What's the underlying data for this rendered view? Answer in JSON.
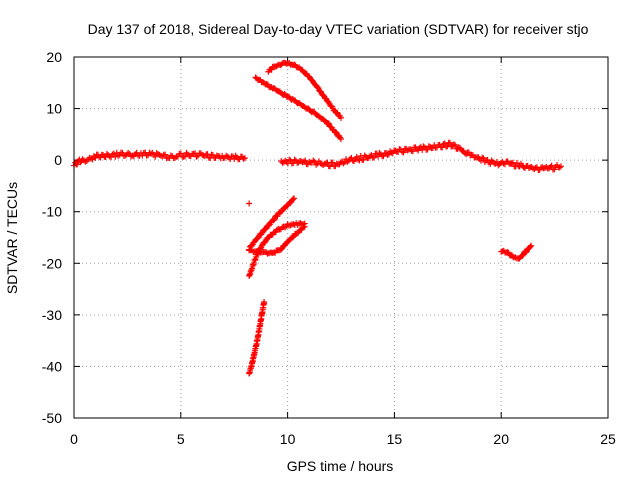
{
  "chart_data": {
    "type": "scatter",
    "title": "Day 137 of 2018, Sidereal Day-to-day VTEC variation (SDTVAR) for receiver stjo",
    "xlabel": "GPS time / hours",
    "ylabel": "SDTVAR / TECUs",
    "xlim": [
      0,
      25
    ],
    "ylim": [
      -50,
      20
    ],
    "x_ticks": [
      "0",
      "5",
      "10",
      "15",
      "20",
      "25"
    ],
    "y_ticks": [
      "20",
      "10",
      "0",
      "-10",
      "-20",
      "-30",
      "-40",
      "-50"
    ],
    "grid": true,
    "legend": "none",
    "marker": "+",
    "color": "#ff0000",
    "series": [
      {
        "x": [
          0.0,
          0.2,
          0.4,
          0.6,
          0.8,
          1.0,
          1.3,
          1.6,
          2.0,
          2.4,
          2.8,
          3.2,
          3.6,
          4.0,
          4.4,
          4.8,
          5.2,
          5.6,
          6.0,
          6.5,
          7.0,
          7.5,
          8.0
        ],
        "y": [
          -0.8,
          -0.4,
          0.0,
          0.2,
          0.4,
          0.6,
          0.8,
          0.9,
          1.1,
          1.2,
          1.0,
          1.1,
          1.2,
          0.9,
          0.6,
          0.8,
          1.0,
          1.1,
          0.9,
          0.8,
          0.7,
          0.5,
          0.4
        ]
      },
      {
        "x": [
          9.7,
          10.2,
          10.7,
          11.2,
          11.8,
          12.3,
          12.8,
          13.3,
          13.8,
          14.3,
          14.8,
          15.3,
          15.8,
          16.3,
          16.8,
          17.3,
          17.6,
          17.9,
          18.3,
          18.8,
          19.3,
          19.8,
          20.3,
          20.8,
          21.3,
          21.8,
          22.3,
          22.8
        ],
        "y": [
          -0.2,
          -0.3,
          -0.4,
          -0.5,
          -0.8,
          -0.8,
          -0.1,
          0.3,
          0.7,
          1.0,
          1.4,
          1.8,
          2.0,
          2.3,
          2.6,
          2.8,
          3.0,
          2.6,
          1.6,
          0.6,
          -0.2,
          -0.6,
          -0.5,
          -1.0,
          -1.4,
          -1.6,
          -1.5,
          -1.2
        ]
      },
      {
        "x": [
          9.1,
          9.3,
          9.6,
          9.9,
          10.2,
          10.6,
          11.0,
          11.4,
          11.8,
          12.2,
          12.5
        ],
        "y": [
          17.2,
          17.9,
          18.5,
          18.8,
          18.6,
          17.7,
          16.2,
          14.1,
          11.8,
          9.6,
          8.2
        ]
      },
      {
        "x": [
          8.5,
          8.9,
          9.3,
          9.8,
          10.3,
          10.8,
          11.3,
          11.8,
          12.2,
          12.5
        ],
        "y": [
          16.0,
          15.0,
          14.0,
          12.8,
          11.6,
          10.3,
          9.0,
          7.5,
          5.6,
          4.1
        ]
      },
      {
        "x": [
          8.2,
          8.5,
          8.9,
          9.3,
          9.7,
          10.0,
          10.3
        ],
        "y": [
          -17.2,
          -15.6,
          -13.6,
          -11.7,
          -9.9,
          -8.7,
          -7.4
        ]
      },
      {
        "x": [
          8.2,
          8.5,
          8.8,
          9.1,
          9.5,
          10.0,
          10.4,
          10.8
        ],
        "y": [
          -22.5,
          -19.0,
          -16.5,
          -15.0,
          -13.6,
          -12.6,
          -12.4,
          -12.3
        ]
      },
      {
        "x": [
          8.2,
          8.6,
          9.0,
          9.3,
          9.7,
          10.1,
          10.5,
          10.8
        ],
        "y": [
          -17.4,
          -17.8,
          -18.0,
          -18.0,
          -17.2,
          -15.4,
          -13.9,
          -12.9
        ]
      },
      {
        "x": [
          8.2,
          8.3,
          8.4,
          8.5,
          8.6,
          8.7,
          8.8,
          8.9
        ],
        "y": [
          -41.4,
          -40.0,
          -38.3,
          -36.5,
          -34.5,
          -32.2,
          -29.8,
          -27.5
        ]
      },
      {
        "x": [
          20.0,
          20.3,
          20.6,
          20.8,
          21.0,
          21.2,
          21.4
        ],
        "y": [
          -17.6,
          -18.0,
          -18.9,
          -19.1,
          -18.4,
          -17.5,
          -16.6
        ]
      },
      {
        "x": [
          8.2
        ],
        "y": [
          -8.4
        ]
      }
    ]
  }
}
